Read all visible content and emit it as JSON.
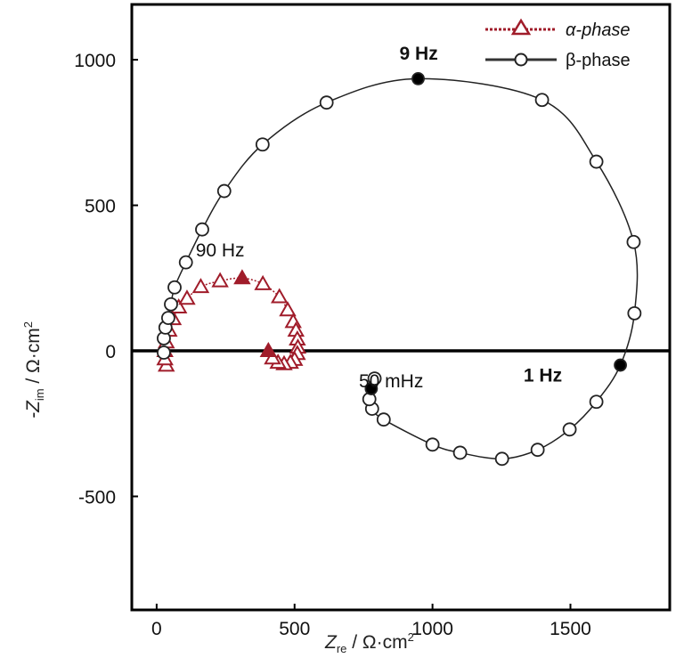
{
  "chart_data": {
    "type": "scatter",
    "title": "",
    "xlabel": "Z_re / Ω·cm²",
    "xlabel_main": "Z",
    "xlabel_sub": "re",
    "xlabel_unit": " / Ω·cm",
    "ylabel": "-Z_im / Ω·cm²",
    "ylabel_main": "-Z",
    "ylabel_sub": "im",
    "ylabel_unit": " / Ω·cm",
    "unit_sup": "2",
    "xlim": [
      -90,
      1860
    ],
    "ylim": [
      -890,
      1190
    ],
    "xticks": [
      0,
      500,
      1000,
      1500
    ],
    "yticks": [
      -500,
      0,
      500,
      1000
    ],
    "legend_position": "top-right",
    "colors": {
      "alpha": "#a01c2a",
      "beta": "#222222"
    },
    "series": [
      {
        "name": "α-phase",
        "marker": "triangle",
        "line": "dotted",
        "points": [
          [
            35,
            -50
          ],
          [
            30,
            -28
          ],
          [
            30,
            0
          ],
          [
            35,
            30
          ],
          [
            45,
            70
          ],
          [
            60,
            110
          ],
          [
            80,
            150
          ],
          [
            110,
            180
          ],
          [
            160,
            220
          ],
          [
            230,
            240
          ],
          [
            310,
            250
          ],
          [
            385,
            230
          ],
          [
            445,
            185
          ],
          [
            475,
            140
          ],
          [
            495,
            100
          ],
          [
            505,
            70
          ],
          [
            510,
            40
          ],
          [
            512,
            12
          ],
          [
            510,
            -10
          ],
          [
            500,
            -30
          ],
          [
            485,
            -40
          ],
          [
            462,
            -45
          ],
          [
            440,
            -40
          ],
          [
            420,
            -25
          ],
          [
            405,
            0
          ]
        ],
        "filled_points": [
          [
            310,
            250
          ],
          [
            405,
            0
          ]
        ]
      },
      {
        "name": "β-phase",
        "marker": "circle",
        "line": "solid",
        "points": [
          [
            26,
            -6
          ],
          [
            26,
            43
          ],
          [
            32,
            80
          ],
          [
            42,
            113
          ],
          [
            52,
            160
          ],
          [
            65,
            218
          ],
          [
            106,
            304
          ],
          [
            165,
            417
          ],
          [
            245,
            549
          ],
          [
            384,
            709
          ],
          [
            616,
            853
          ],
          [
            948,
            935
          ],
          [
            1397,
            862
          ],
          [
            1594,
            650
          ],
          [
            1729,
            374
          ],
          [
            1732,
            129
          ],
          [
            1681,
            -49
          ],
          [
            1594,
            -175
          ],
          [
            1497,
            -270
          ],
          [
            1381,
            -340
          ],
          [
            1252,
            -371
          ],
          [
            1100,
            -350
          ],
          [
            1000,
            -322
          ],
          [
            823,
            -236
          ],
          [
            781,
            -199
          ],
          [
            771,
            -166
          ],
          [
            778,
            -130
          ],
          [
            790,
            -95
          ]
        ],
        "filled_points": [
          [
            948,
            935
          ],
          [
            1681,
            -49
          ],
          [
            778,
            -130
          ]
        ]
      }
    ],
    "annotations": [
      {
        "text": "9 Hz",
        "x": 950,
        "y": 1000,
        "bold": true
      },
      {
        "text": "90 Hz",
        "x": 230,
        "y": 325,
        "bold": false
      },
      {
        "text": "50 mHz",
        "x": 850,
        "y": -125,
        "bold": false
      },
      {
        "text": "1 Hz",
        "x": 1400,
        "y": -105,
        "bold": true
      }
    ]
  }
}
